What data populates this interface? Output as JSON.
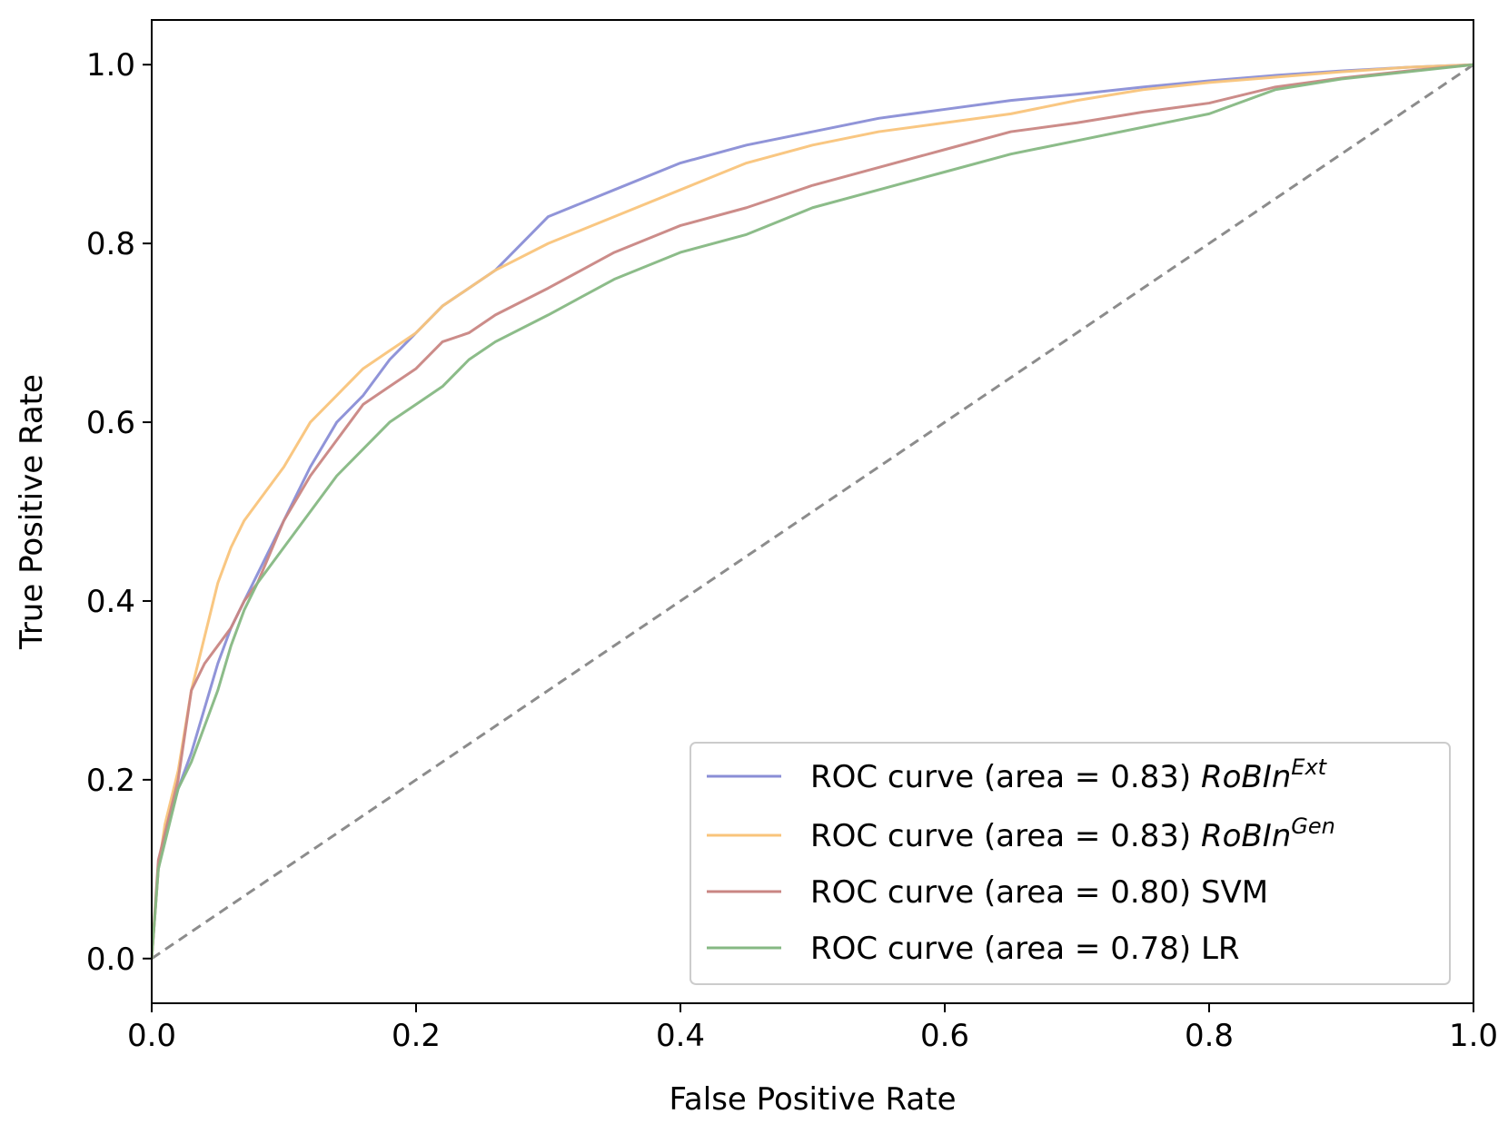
{
  "chart_data": {
    "type": "line",
    "title": "",
    "xlabel": "False Positive Rate",
    "ylabel": "True Positive Rate",
    "xlim": [
      0.0,
      1.0
    ],
    "ylim": [
      -0.05,
      1.05
    ],
    "grid": false,
    "legend_location": "lower-right",
    "x_ticks": [
      "0.0",
      "0.2",
      "0.4",
      "0.6",
      "0.8",
      "1.0"
    ],
    "y_ticks": [
      "0.0",
      "0.2",
      "0.4",
      "0.6",
      "0.8",
      "1.0"
    ],
    "reference_line": {
      "name": "chance",
      "style": "dashed",
      "color": "#8c8c8c",
      "x": [
        0.0,
        1.0
      ],
      "y": [
        0.0,
        1.0
      ]
    },
    "series": [
      {
        "name": "RoBIn-Ext",
        "legend_prefix": "ROC curve (area = 0.83) ",
        "legend_method": "RoBIn",
        "legend_sup": "Ext",
        "auc": 0.83,
        "color": "#8a8ed6",
        "x": [
          0.0,
          0.005,
          0.01,
          0.02,
          0.03,
          0.04,
          0.05,
          0.06,
          0.07,
          0.08,
          0.1,
          0.12,
          0.14,
          0.16,
          0.18,
          0.2,
          0.22,
          0.24,
          0.26,
          0.3,
          0.35,
          0.4,
          0.45,
          0.5,
          0.55,
          0.6,
          0.65,
          0.7,
          0.75,
          0.8,
          0.85,
          0.9,
          0.95,
          1.0
        ],
        "y": [
          0.0,
          0.1,
          0.14,
          0.19,
          0.23,
          0.28,
          0.33,
          0.37,
          0.4,
          0.43,
          0.49,
          0.55,
          0.6,
          0.63,
          0.67,
          0.7,
          0.73,
          0.75,
          0.77,
          0.83,
          0.86,
          0.89,
          0.91,
          0.925,
          0.94,
          0.95,
          0.96,
          0.967,
          0.975,
          0.982,
          0.988,
          0.993,
          0.997,
          1.0
        ]
      },
      {
        "name": "RoBIn-Gen",
        "legend_prefix": "ROC curve (area = 0.83) ",
        "legend_method": "RoBIn",
        "legend_sup": "Gen",
        "auc": 0.83,
        "color": "#f9c47b",
        "x": [
          0.0,
          0.005,
          0.01,
          0.02,
          0.03,
          0.04,
          0.05,
          0.06,
          0.07,
          0.08,
          0.1,
          0.12,
          0.14,
          0.16,
          0.18,
          0.2,
          0.22,
          0.24,
          0.26,
          0.3,
          0.35,
          0.4,
          0.45,
          0.5,
          0.55,
          0.6,
          0.65,
          0.7,
          0.75,
          0.8,
          0.85,
          0.9,
          0.95,
          1.0
        ],
        "y": [
          0.0,
          0.1,
          0.15,
          0.21,
          0.3,
          0.36,
          0.42,
          0.46,
          0.49,
          0.51,
          0.55,
          0.6,
          0.63,
          0.66,
          0.68,
          0.7,
          0.73,
          0.75,
          0.77,
          0.8,
          0.83,
          0.86,
          0.89,
          0.91,
          0.925,
          0.935,
          0.945,
          0.96,
          0.972,
          0.98,
          0.986,
          0.992,
          0.997,
          1.0
        ]
      },
      {
        "name": "SVM",
        "legend_prefix": "ROC curve (area = 0.80) SVM",
        "legend_method": "",
        "legend_sup": "",
        "auc": 0.8,
        "color": "#c98683",
        "x": [
          0.0,
          0.005,
          0.01,
          0.02,
          0.03,
          0.04,
          0.05,
          0.06,
          0.07,
          0.08,
          0.1,
          0.12,
          0.14,
          0.16,
          0.18,
          0.2,
          0.22,
          0.24,
          0.26,
          0.3,
          0.35,
          0.4,
          0.45,
          0.5,
          0.55,
          0.6,
          0.65,
          0.7,
          0.75,
          0.8,
          0.85,
          0.9,
          0.95,
          1.0
        ],
        "y": [
          0.0,
          0.11,
          0.14,
          0.2,
          0.3,
          0.33,
          0.35,
          0.37,
          0.4,
          0.42,
          0.49,
          0.54,
          0.58,
          0.62,
          0.64,
          0.66,
          0.69,
          0.7,
          0.72,
          0.75,
          0.79,
          0.82,
          0.84,
          0.865,
          0.885,
          0.905,
          0.925,
          0.935,
          0.947,
          0.957,
          0.975,
          0.985,
          0.993,
          1.0
        ]
      },
      {
        "name": "LR",
        "legend_prefix": "ROC curve (area = 0.78) LR",
        "legend_method": "",
        "legend_sup": "",
        "auc": 0.78,
        "color": "#86b883",
        "x": [
          0.0,
          0.005,
          0.01,
          0.02,
          0.03,
          0.04,
          0.05,
          0.06,
          0.07,
          0.08,
          0.1,
          0.12,
          0.14,
          0.16,
          0.18,
          0.2,
          0.22,
          0.24,
          0.26,
          0.3,
          0.35,
          0.4,
          0.45,
          0.5,
          0.55,
          0.6,
          0.65,
          0.7,
          0.75,
          0.8,
          0.85,
          0.9,
          0.95,
          1.0
        ],
        "y": [
          0.0,
          0.1,
          0.13,
          0.19,
          0.22,
          0.26,
          0.3,
          0.35,
          0.39,
          0.42,
          0.46,
          0.5,
          0.54,
          0.57,
          0.6,
          0.62,
          0.64,
          0.67,
          0.69,
          0.72,
          0.76,
          0.79,
          0.81,
          0.84,
          0.86,
          0.88,
          0.9,
          0.915,
          0.93,
          0.945,
          0.972,
          0.984,
          0.992,
          1.0
        ]
      }
    ]
  }
}
